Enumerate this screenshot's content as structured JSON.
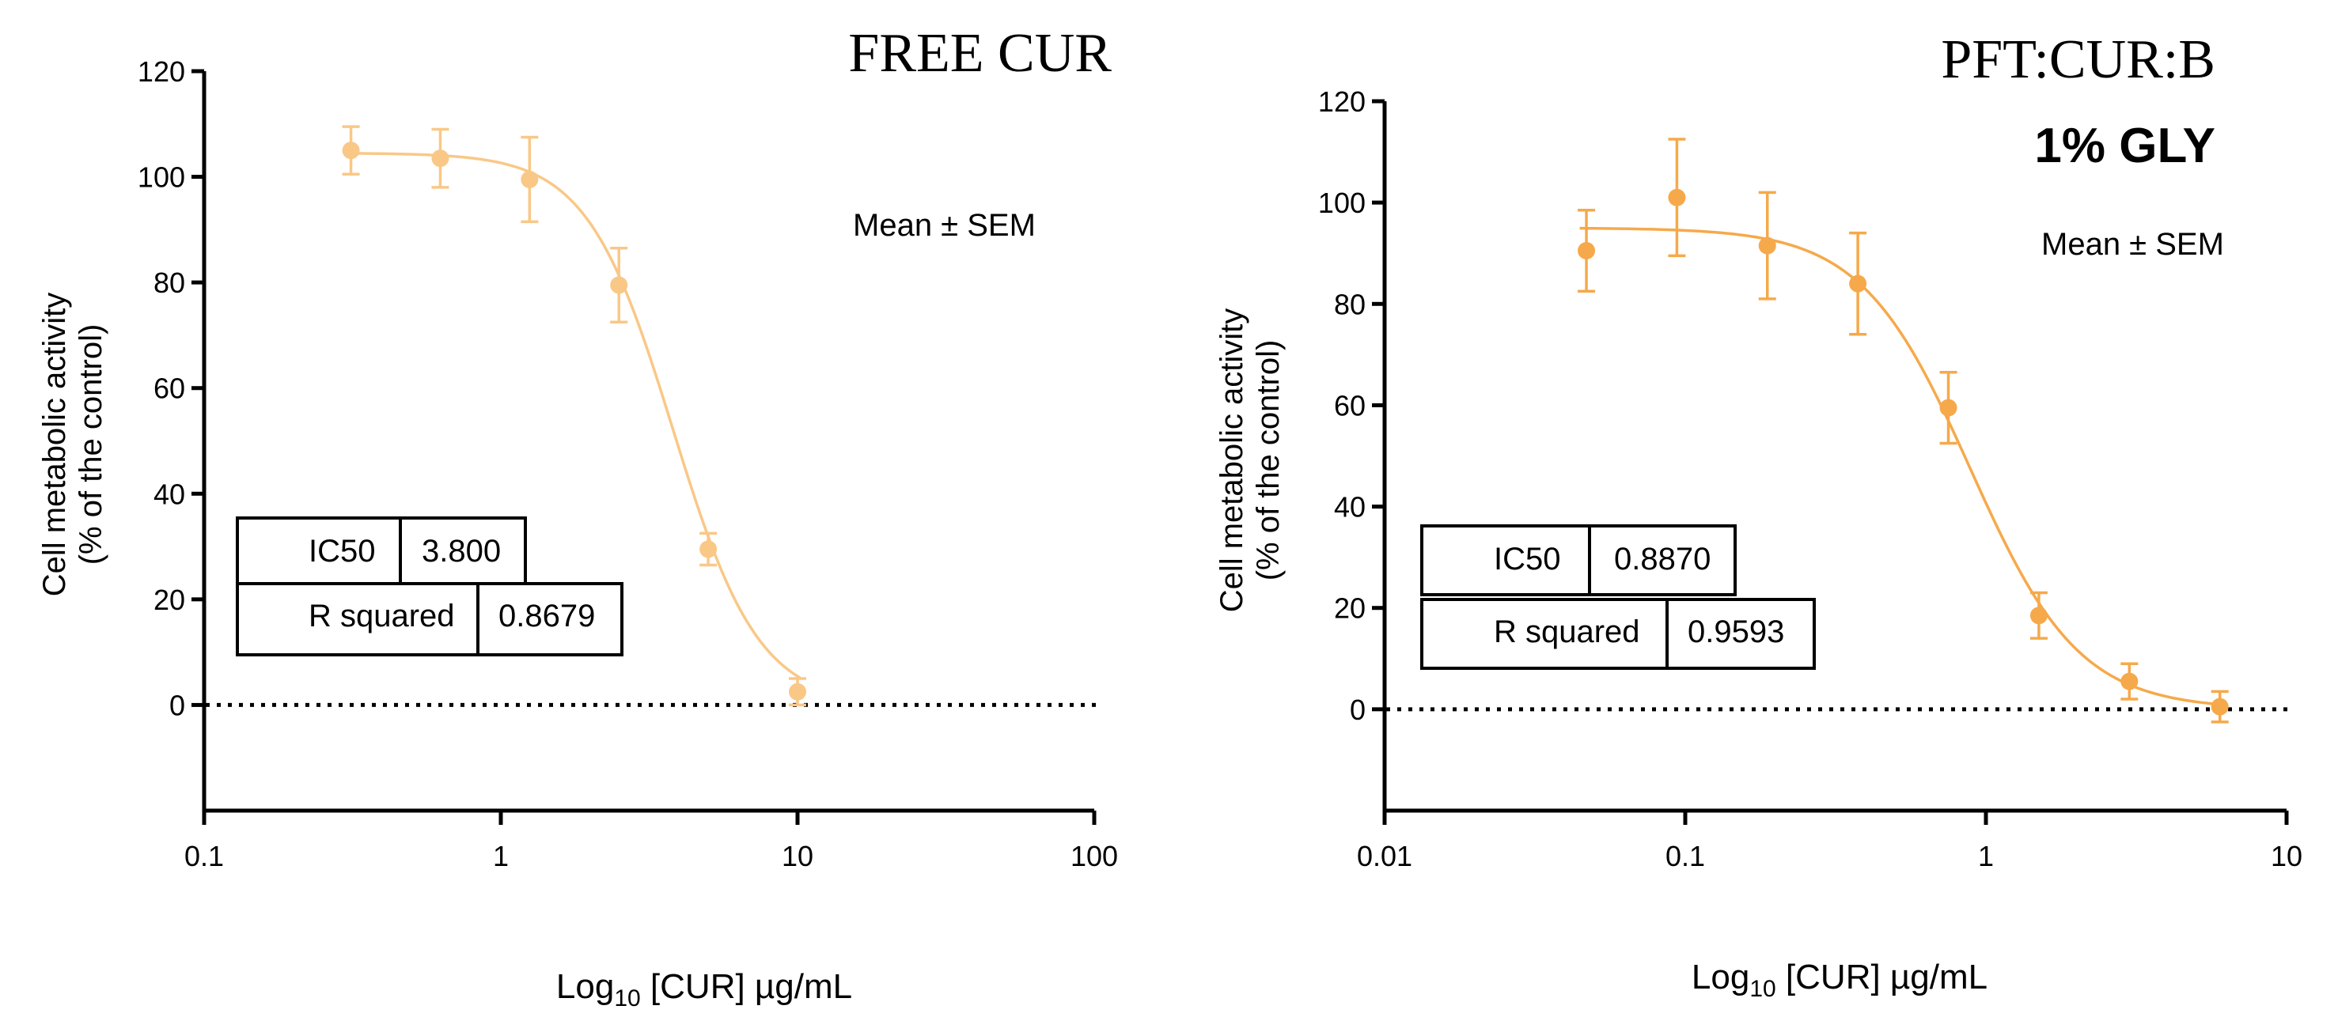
{
  "chart_data": [
    {
      "type": "scatter",
      "title": "FREE CUR",
      "subtitle": "",
      "annotation": "Mean ± SEM",
      "xlabel": "Log10 [CUR] µg/mL",
      "xlabel_parts": {
        "base": "Log",
        "sub": "10",
        "rest": " [CUR] µg/mL"
      },
      "ylabel_lines": [
        "Cell metabolic activity",
        "(% of the control)"
      ],
      "xscale": "log",
      "xlim": [
        0.1,
        100
      ],
      "ylim": [
        -20,
        120
      ],
      "x_ticks": [
        0.1,
        1,
        10,
        100
      ],
      "x_tick_labels": [
        "0.1",
        "1",
        "10",
        "100"
      ],
      "y_ticks": [
        0,
        20,
        40,
        60,
        80,
        100,
        120
      ],
      "y_tick_labels": [
        "0",
        "20",
        "40",
        "60",
        "80",
        "100",
        "120"
      ],
      "color": "#F9C887",
      "series": [
        {
          "name": "FREE CUR",
          "x": [
            0.3125,
            0.625,
            1.25,
            2.5,
            5,
            10
          ],
          "y": [
            105,
            103.5,
            99.5,
            79.5,
            29.5,
            2.5
          ],
          "err": [
            4.5,
            5.5,
            8,
            7,
            3,
            2.5
          ]
        }
      ],
      "fit": {
        "type": "sigmoidal",
        "top": 104.5,
        "bottom": 0,
        "ic50": 3.8,
        "hill": 3.0
      },
      "stats": [
        {
          "label": "IC50",
          "value": "3.800"
        },
        {
          "label": "R squared",
          "value": "0.8679"
        }
      ]
    },
    {
      "type": "scatter",
      "title": "PFT:CUR:B",
      "subtitle": "1% GLY",
      "annotation": "Mean ± SEM",
      "xlabel": "Log10 [CUR] µg/mL",
      "xlabel_parts": {
        "base": "Log",
        "sub": "10",
        "rest": " [CUR] µg/mL"
      },
      "ylabel_lines": [
        "Cell metabolic activity",
        "(% of the control)"
      ],
      "xscale": "log",
      "xlim": [
        0.01,
        10
      ],
      "ylim": [
        -20,
        120
      ],
      "x_ticks": [
        0.01,
        0.1,
        1,
        10
      ],
      "x_tick_labels": [
        "0.01",
        "0.1",
        "1",
        "10"
      ],
      "y_ticks": [
        0,
        20,
        40,
        60,
        80,
        100,
        120
      ],
      "y_tick_labels": [
        "0",
        "20",
        "40",
        "60",
        "80",
        "100",
        "120"
      ],
      "color": "#F6A94A",
      "series": [
        {
          "name": "PFT:CUR:B 1% GLY",
          "x": [
            0.0469,
            0.0938,
            0.1875,
            0.375,
            0.75,
            1.5,
            3,
            6
          ],
          "y": [
            90.5,
            101,
            91.5,
            84,
            59.5,
            18.5,
            5.5,
            0.5
          ],
          "err": [
            8,
            11.5,
            10.5,
            10,
            7,
            4.5,
            3.5,
            3
          ]
        }
      ],
      "fit": {
        "type": "sigmoidal",
        "top": 95,
        "bottom": 0,
        "ic50": 0.887,
        "hill": 2.4
      },
      "stats": [
        {
          "label": "IC50",
          "value": "0.8870"
        },
        {
          "label": "R squared",
          "value": "0.9593"
        }
      ]
    }
  ]
}
